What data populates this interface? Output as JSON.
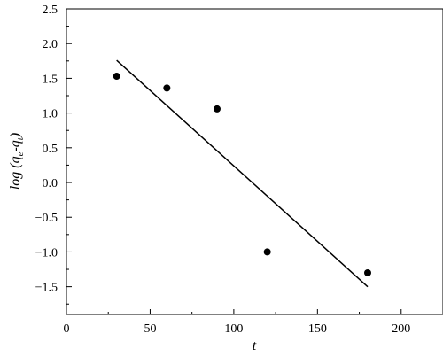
{
  "chart_data": {
    "type": "scatter",
    "title": "",
    "xlabel": "t",
    "ylabel": {
      "prefix": "log (",
      "q1": "q",
      "q1_sub": "e",
      "minus": "-",
      "q2": "q",
      "q2_sub": "t",
      "suffix": ")"
    },
    "xlim": [
      0,
      225
    ],
    "ylim": [
      -1.9,
      2.5
    ],
    "x_ticks": [
      0,
      50,
      100,
      150,
      200
    ],
    "x_tick_labels": [
      "0",
      "50",
      "100",
      "150",
      "200"
    ],
    "y_ticks": [
      -1.5,
      -1.0,
      -0.5,
      0.0,
      0.5,
      1.0,
      1.5,
      2.0,
      2.5
    ],
    "y_tick_labels": [
      "−1.5",
      "−1.0",
      "−0.5",
      "0.0",
      "0.5",
      "1.0",
      "1.5",
      "2.0",
      "2.5"
    ],
    "grid": false,
    "legend": "none",
    "series": [
      {
        "kind": "points",
        "x": [
          30,
          60,
          90,
          120,
          180
        ],
        "y": [
          1.53,
          1.36,
          1.06,
          -1.0,
          -1.3
        ]
      },
      {
        "kind": "fit-line",
        "x": [
          30,
          180
        ],
        "y": [
          1.76,
          -1.5
        ]
      }
    ],
    "colors": {
      "points": "#000000",
      "line": "#000000",
      "axes": "#000000"
    }
  }
}
